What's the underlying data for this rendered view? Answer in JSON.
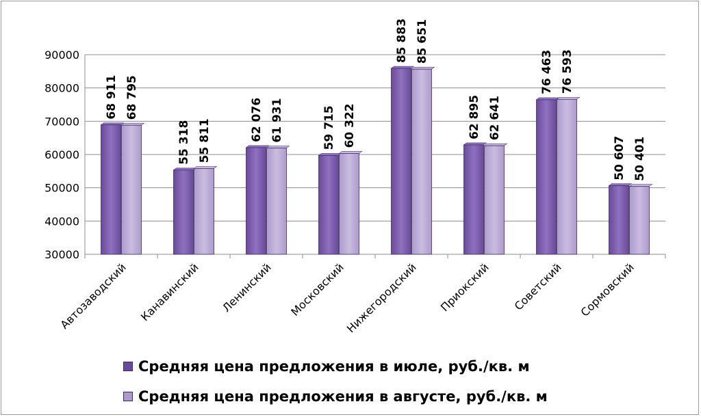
{
  "chart_data": {
    "type": "bar",
    "categories": [
      "Автозаводский",
      "Канавинский",
      "Ленинский",
      "Московский",
      "Нижегородский",
      "Приокский",
      "Советский",
      "Сормовский"
    ],
    "series": [
      {
        "name": "Средняя цена предложения в июле, руб./кв. м",
        "values": [
          68911,
          55318,
          62076,
          59715,
          85883,
          62895,
          76463,
          50607
        ],
        "labels": [
          "68 911",
          "55 318",
          "62 076",
          "59 715",
          "85 883",
          "62 895",
          "76 463",
          "50 607"
        ],
        "color": "#6a4a9a",
        "color_light": "#8f72bf"
      },
      {
        "name": "Средняя цена предложения в августе, руб./кв. м",
        "values": [
          68795,
          55811,
          61931,
          60322,
          85651,
          62641,
          76593,
          50401
        ],
        "labels": [
          "68 795",
          "55 811",
          "61 931",
          "60 322",
          "85 651",
          "62 641",
          "76 593",
          "50 401"
        ],
        "color": "#ad9bcc",
        "color_light": "#c9bce0"
      }
    ],
    "yticks": [
      "30000",
      "40000",
      "50000",
      "60000",
      "70000",
      "80000",
      "90000"
    ],
    "ylim": [
      30000,
      90000
    ],
    "grid": true,
    "legend_position": "bottom",
    "title": "",
    "xlabel": "",
    "ylabel": ""
  }
}
